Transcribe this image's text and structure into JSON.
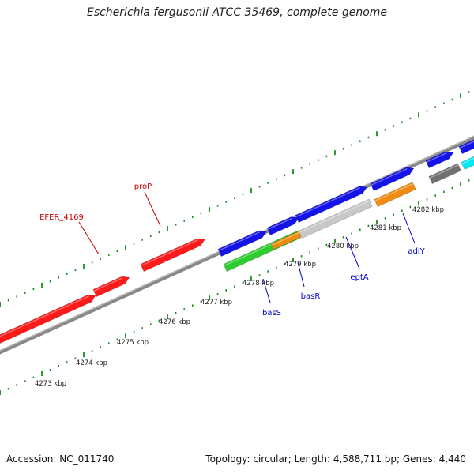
{
  "title": "Escherichia fergusonii ATCC 35469, complete genome",
  "footer": {
    "accession": "Accession: NC_011740",
    "summary": "Topology: circular; Length: 4,588,711 bp; Genes: 4,440"
  },
  "colors": {
    "red": "#ff1a1a",
    "blue": "#1414e8",
    "green": "#2ecc2e",
    "orange": "#f08a10",
    "light_gray": "#c8c8c8",
    "dark_gray": "#707070",
    "cyan": "#00e8f0",
    "tick_green": "#1a8a1a",
    "label_red": "#cc0000",
    "label_blue": "#0000cc"
  },
  "scale_labels": [
    "4273 kbp",
    "4274 kbp",
    "4275 kbp",
    "4276 kbp",
    "4277 kbp",
    "4278 kbp",
    "4279 kbp",
    "4280 kbp",
    "4281 kbp",
    "4282 kbp"
  ],
  "gene_labels": [
    "EFER_4169",
    "proP",
    "basS",
    "basR",
    "eptA",
    "adiY"
  ]
}
